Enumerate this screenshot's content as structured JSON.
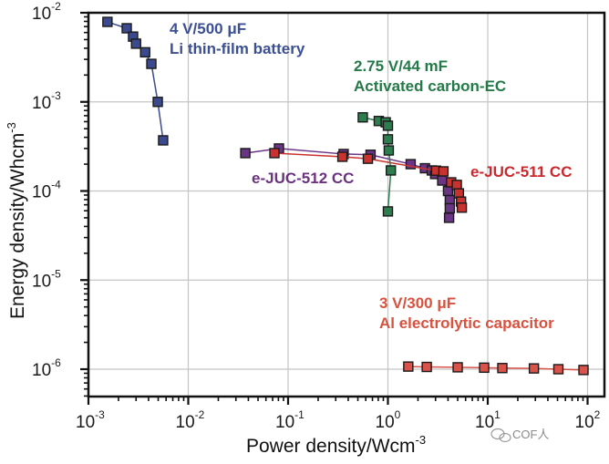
{
  "chart_data": {
    "type": "scatter",
    "title": "",
    "xlabel": "Power density/Wcm",
    "xlabel_exp": "-3",
    "ylabel": "Energy density/Whcm",
    "ylabel_exp": "-3",
    "xscale": "log",
    "yscale": "log",
    "xlim": [
      0.001,
      140
    ],
    "ylim": [
      5e-07,
      0.01
    ],
    "grid": true,
    "x_ticks": [
      {
        "base": "10",
        "exp": "-3",
        "value": 0.001
      },
      {
        "base": "10",
        "exp": "-2",
        "value": 0.01
      },
      {
        "base": "10",
        "exp": "-1",
        "value": 0.1
      },
      {
        "base": "10",
        "exp": "0",
        "value": 1
      },
      {
        "base": "10",
        "exp": "1",
        "value": 10
      },
      {
        "base": "10",
        "exp": "2",
        "value": 100
      }
    ],
    "y_ticks": [
      {
        "base": "10",
        "exp": "-2",
        "value": 0.01
      },
      {
        "base": "10",
        "exp": "-3",
        "value": 0.001
      },
      {
        "base": "10",
        "exp": "-4",
        "value": 0.0001
      },
      {
        "base": "10",
        "exp": "-5",
        "value": 1e-05
      },
      {
        "base": "10",
        "exp": "-6",
        "value": 1e-06
      }
    ],
    "series": [
      {
        "name": "Li thin-film battery",
        "label_lines": [
          "4 V/500 μF",
          "Li thin-film battery"
        ],
        "color": "#3b4a8e",
        "label_color": "#3c4f93",
        "x": [
          0.00155,
          0.00242,
          0.0028,
          0.003,
          0.0037,
          0.00427,
          0.00495,
          0.0056
        ],
        "y": [
          0.0079,
          0.0067,
          0.0054,
          0.0045,
          0.0036,
          0.00267,
          0.001,
          0.00037
        ]
      },
      {
        "name": "Activated carbon-EC",
        "label_lines": [
          "2.75 V/44 mF",
          "Activated carbon-EC"
        ],
        "color": "#2e7d4f",
        "label_color": "#237a48",
        "x": [
          0.56,
          0.81,
          0.95,
          1.0,
          1.0,
          1.02,
          1.07,
          1.0
        ],
        "y": [
          0.00067,
          0.00061,
          0.00059,
          0.00054,
          0.00038,
          0.000285,
          0.00017,
          5.9e-05
        ]
      },
      {
        "name": "e-JUC-512 CC",
        "label_lines": [
          "e-JUC-512 CC"
        ],
        "color": "#6b3585",
        "label_color": "#6a327f",
        "x": [
          0.0373,
          0.081,
          0.36,
          0.67,
          1.69,
          2.35,
          2.75,
          2.97,
          3.5,
          4.0,
          4.17,
          4.17,
          4.1
        ],
        "y": [
          0.000266,
          0.0003,
          0.00026,
          0.000255,
          0.0002,
          0.00018,
          0.00017,
          0.000155,
          0.000131,
          0.0001,
          7.9e-05,
          6.4e-05,
          5e-05
        ]
      },
      {
        "name": "e-JUC-511 CC",
        "label_lines": [
          "e-JUC-511 CC"
        ],
        "color": "#c8332f",
        "label_color": "#c8282e",
        "x": [
          0.073,
          0.35,
          0.63,
          3.04,
          3.6,
          4.3,
          4.9,
          5.14,
          5.4,
          5.5
        ],
        "y": [
          0.000266,
          0.000242,
          0.00023,
          0.000169,
          0.000166,
          0.000125,
          0.000117,
          9.4e-05,
          7.6e-05,
          6.5e-05
        ]
      },
      {
        "name": "Al electrolytic capacitor",
        "label_lines": [
          "3 V/300 μF",
          "Al electrolytic capacitor"
        ],
        "color": "#d9534a",
        "label_color": "#d7523f",
        "x": [
          1.6,
          2.45,
          5.0,
          9.2,
          14,
          29,
          51,
          91
        ],
        "y": [
          1.07e-06,
          1.06e-06,
          1.05e-06,
          1.04e-06,
          1.03e-06,
          1.02e-06,
          1e-06,
          9.8e-07
        ]
      }
    ],
    "annotations_position": {
      "Li thin-film battery": "top-left",
      "Activated carbon-EC": "top-center",
      "e-JUC-512 CC": "center-left",
      "e-JUC-511 CC": "center-right",
      "Al electrolytic capacitor": "bottom-right"
    }
  },
  "watermark": "COF人"
}
